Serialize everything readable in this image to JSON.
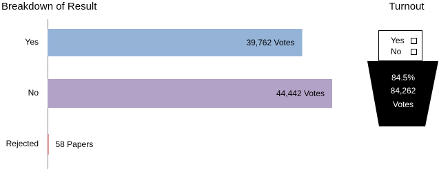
{
  "chart_data": {
    "type": "bar",
    "orientation": "horizontal",
    "title": "Breakdown of Result",
    "categories": [
      "Yes",
      "No",
      "Rejected"
    ],
    "values": [
      39762,
      44442,
      58
    ],
    "value_labels": [
      "39,762 Votes",
      "44,442 Votes",
      "58 Papers"
    ],
    "colors": [
      "#95b3d7",
      "#b3a2c7",
      "#c0504d"
    ]
  },
  "turnout": {
    "title": "Turnout",
    "ballot_options": [
      "Yes",
      "No"
    ],
    "percent": "84.5%",
    "count": "84,262",
    "count_unit": "Votes"
  }
}
